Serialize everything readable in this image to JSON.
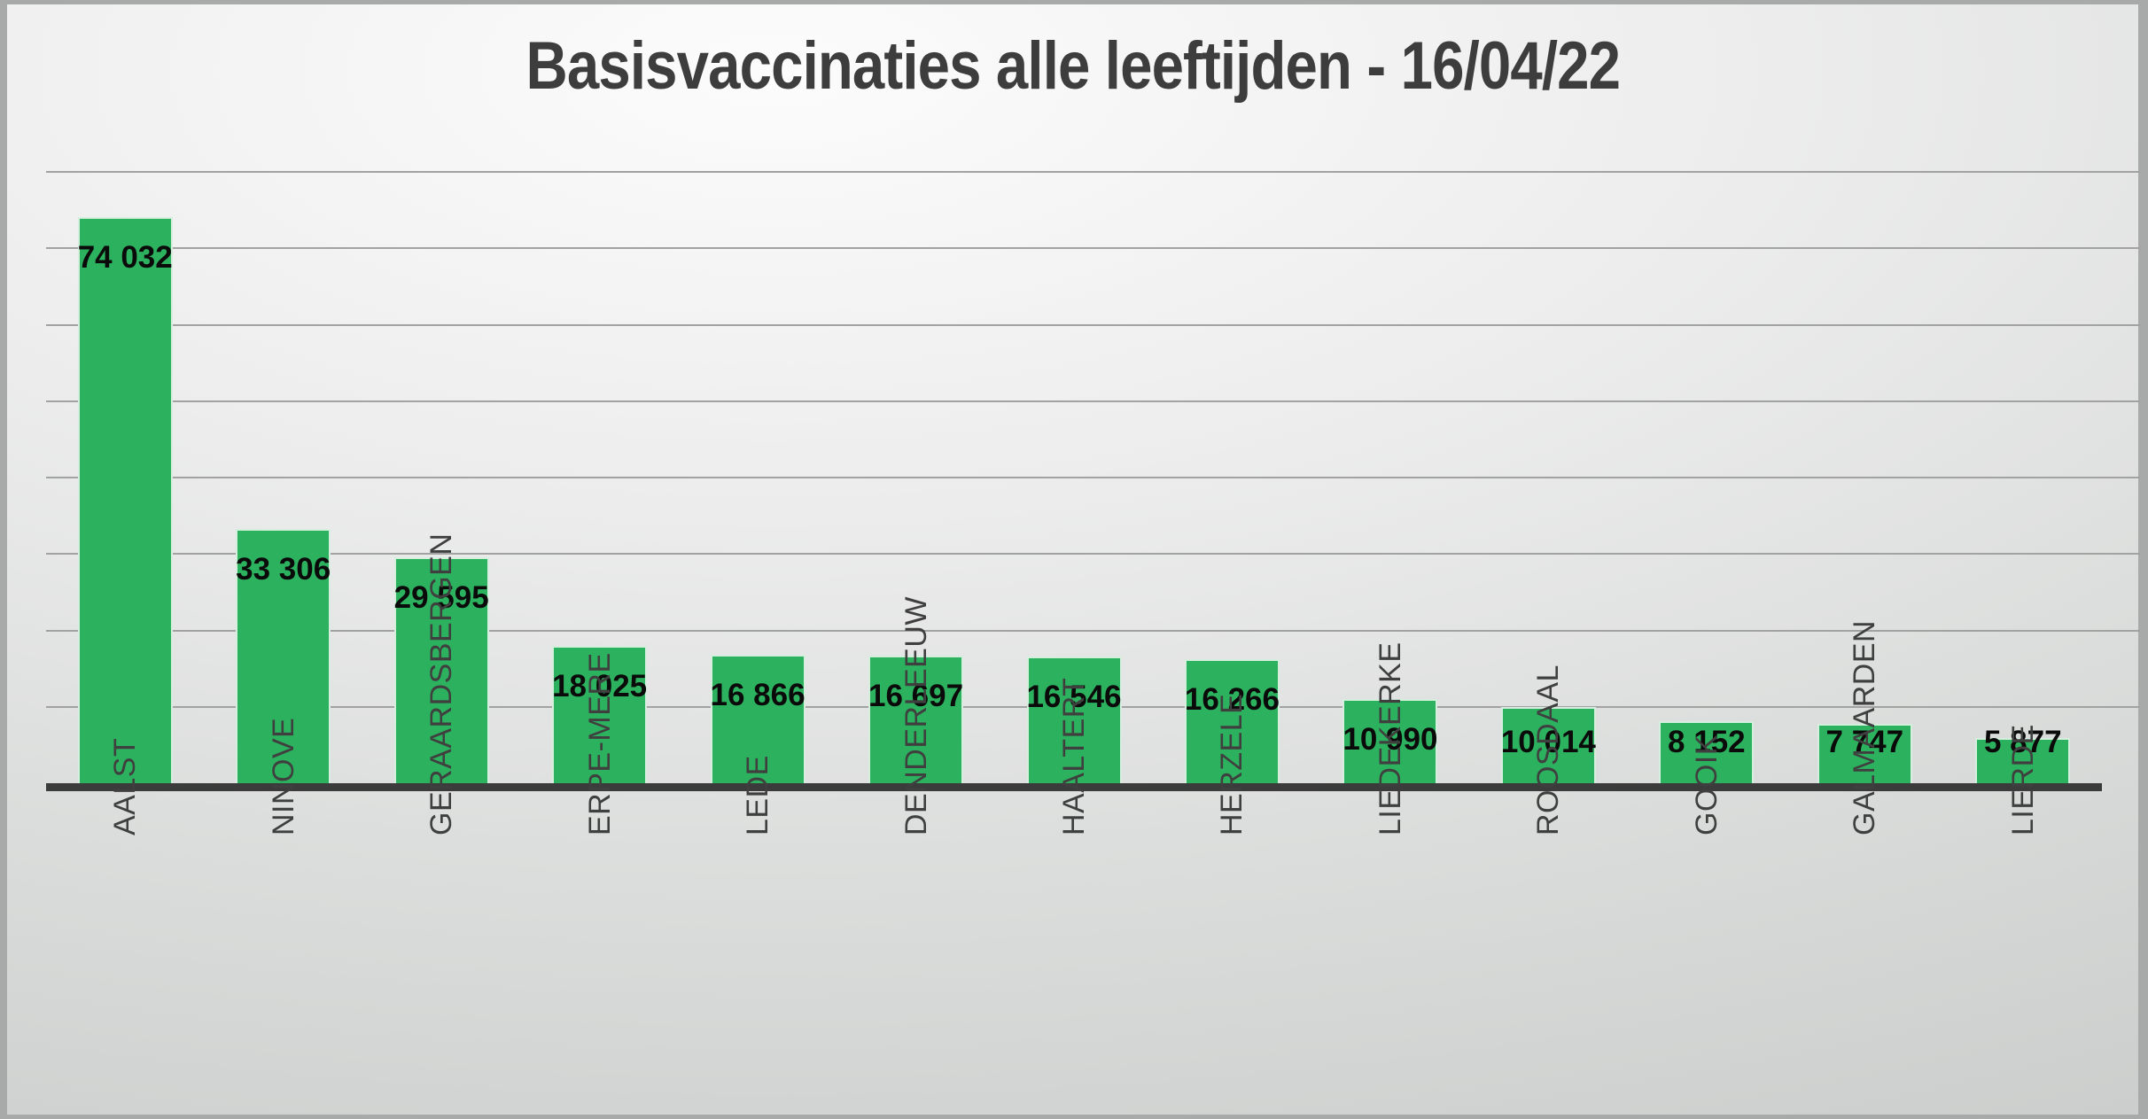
{
  "chart_data": {
    "type": "bar",
    "title": "Basisvaccinaties alle leeftijden - 16/04/22",
    "categories": [
      "AALST",
      "NINOVE",
      "GERAARDSBERGEN",
      "ERPE-MERE",
      "LEDE",
      "DENDERLEEUW",
      "HAALTERT",
      "HERZELE",
      "LIEDEKERKE",
      "ROOSDAAL",
      "GOOIK",
      "GALMAARDEN",
      "LIERDE"
    ],
    "values": [
      74032,
      33306,
      29595,
      18025,
      16866,
      16697,
      16546,
      16266,
      10990,
      10014,
      8152,
      7747,
      5877
    ],
    "value_labels": [
      "74 032",
      "33 306",
      "29 595",
      "18 025",
      "16 866",
      "16 697",
      "16 546",
      "16 266",
      "10 990",
      "10 014",
      "8 152",
      "7 747",
      "5 877"
    ],
    "xlabel": "",
    "ylabel": "",
    "ylim": [
      0,
      80000
    ],
    "gridline_step": 10000,
    "grid": "horizontal",
    "y_tick_labels_visible": false,
    "legend": "none",
    "data_label_position": "inside-end",
    "category_label_rotation_deg": 90,
    "colors": {
      "bar_fill": "#2cb25e",
      "bar_border": "#d6eede",
      "gridline": "#a2a2a2",
      "axis_line": "#3b3b3b",
      "title_text": "#3d3d3d",
      "category_text": "#3f3f3f",
      "value_label_text": "#0a0a0a"
    }
  }
}
